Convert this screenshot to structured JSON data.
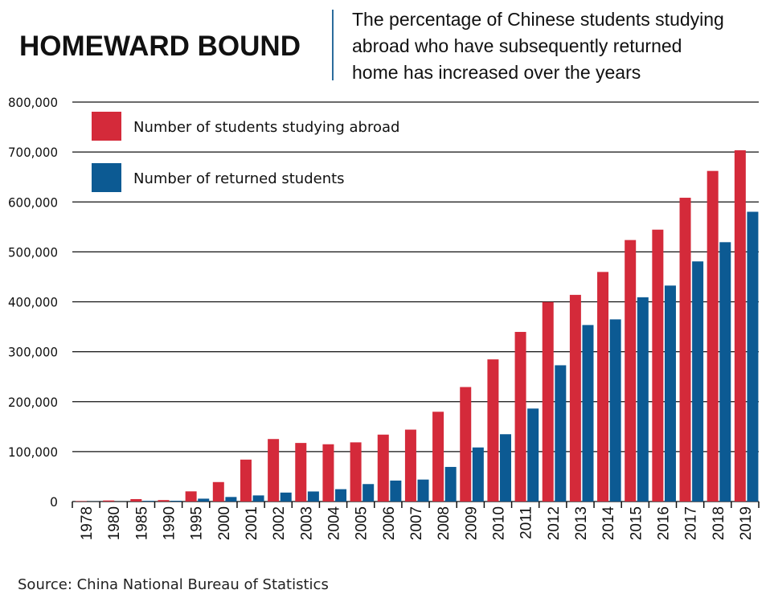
{
  "header": {
    "title": "HOMEWARD BOUND",
    "subtitle_lines": [
      "The percentage of Chinese students studying",
      "abroad who have subsequently returned",
      "home has increased over the years"
    ]
  },
  "source": "Source: China National Bureau of Statistics",
  "colors": {
    "abroad": "#d42a3a",
    "returned": "#0c5a93",
    "grid": "#111111",
    "divider": "#2b6c9c"
  },
  "chart_data": {
    "type": "bar",
    "title": "HOMEWARD BOUND",
    "subtitle": "The percentage of Chinese students studying abroad who have subsequently returned home has increased over the years",
    "xlabel": "",
    "ylabel": "",
    "ylim": [
      0,
      800000
    ],
    "yticks": [
      0,
      100000,
      200000,
      300000,
      400000,
      500000,
      600000,
      700000,
      800000
    ],
    "ytick_labels": [
      "0",
      "100,000",
      "200,000",
      "300,000",
      "400,000",
      "500,000",
      "600,000",
      "700,000",
      "800,000"
    ],
    "grid": true,
    "legend_position": "top-left",
    "categories": [
      "1978",
      "1980",
      "1985",
      "1990",
      "1995",
      "2000",
      "2001",
      "2002",
      "2003",
      "2004",
      "2005",
      "2006",
      "2007",
      "2008",
      "2009",
      "2010",
      "2011",
      "2012",
      "2013",
      "2014",
      "2015",
      "2016",
      "2017",
      "2018",
      "2019"
    ],
    "series": [
      {
        "name": "Number of students studying abroad",
        "values": [
          860,
          2124,
          4888,
          2950,
          20381,
          38989,
          83973,
          125179,
          117307,
          114682,
          118515,
          134000,
          144000,
          179800,
          229300,
          284700,
          339700,
          399600,
          413900,
          459800,
          523700,
          544500,
          608400,
          662100,
          703500
        ]
      },
      {
        "name": "Number of returned students",
        "values": [
          248,
          162,
          1424,
          1593,
          5750,
          9121,
          12243,
          17945,
          20152,
          24726,
          34987,
          42000,
          44000,
          69300,
          108300,
          134800,
          186200,
          272900,
          353500,
          364800,
          409100,
          432500,
          480900,
          519400,
          580300
        ]
      }
    ]
  }
}
